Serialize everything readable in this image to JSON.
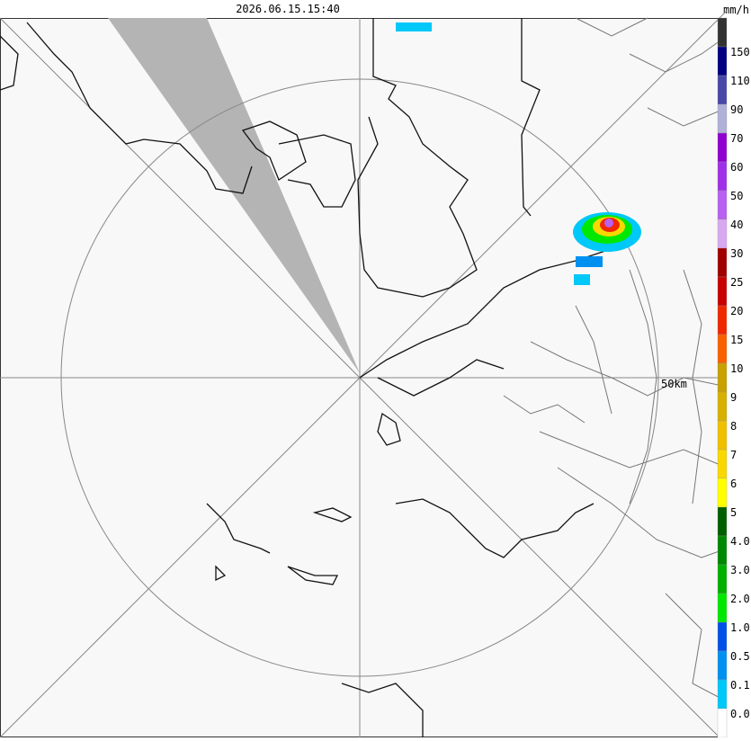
{
  "header": {
    "timestamp": "2026.06.15.15:40"
  },
  "map": {
    "range_label": "50km"
  },
  "legend": {
    "unit": "mm/h",
    "segments": [
      {
        "color": "#333333"
      },
      {
        "label": "150",
        "color": "#000080"
      },
      {
        "label": "110",
        "color": "#4848a8"
      },
      {
        "label": "90",
        "color": "#b0b0d8"
      },
      {
        "label": "70",
        "color": "#9000d0"
      },
      {
        "label": "60",
        "color": "#a030e8"
      },
      {
        "label": "50",
        "color": "#b860f0"
      },
      {
        "label": "40",
        "color": "#d8a8f0"
      },
      {
        "label": "30",
        "color": "#a00000"
      },
      {
        "label": "25",
        "color": "#c80000"
      },
      {
        "label": "20",
        "color": "#f02800"
      },
      {
        "label": "15",
        "color": "#f86000"
      },
      {
        "label": "10",
        "color": "#c8a000"
      },
      {
        "label": "9",
        "color": "#d8b000"
      },
      {
        "label": "8",
        "color": "#f0c000"
      },
      {
        "label": "7",
        "color": "#f8d800"
      },
      {
        "label": "6",
        "color": "#ffff00"
      },
      {
        "label": "5",
        "color": "#006000"
      },
      {
        "label": "4.0",
        "color": "#008800"
      },
      {
        "label": "3.0",
        "color": "#00b000"
      },
      {
        "label": "2.0",
        "color": "#00e800"
      },
      {
        "label": "1.0",
        "color": "#0050e8"
      },
      {
        "label": "0.5",
        "color": "#0090f0"
      },
      {
        "label": "0.1",
        "color": "#00c8f8"
      },
      {
        "label": "0.0",
        "color": "#ffffff"
      }
    ]
  }
}
